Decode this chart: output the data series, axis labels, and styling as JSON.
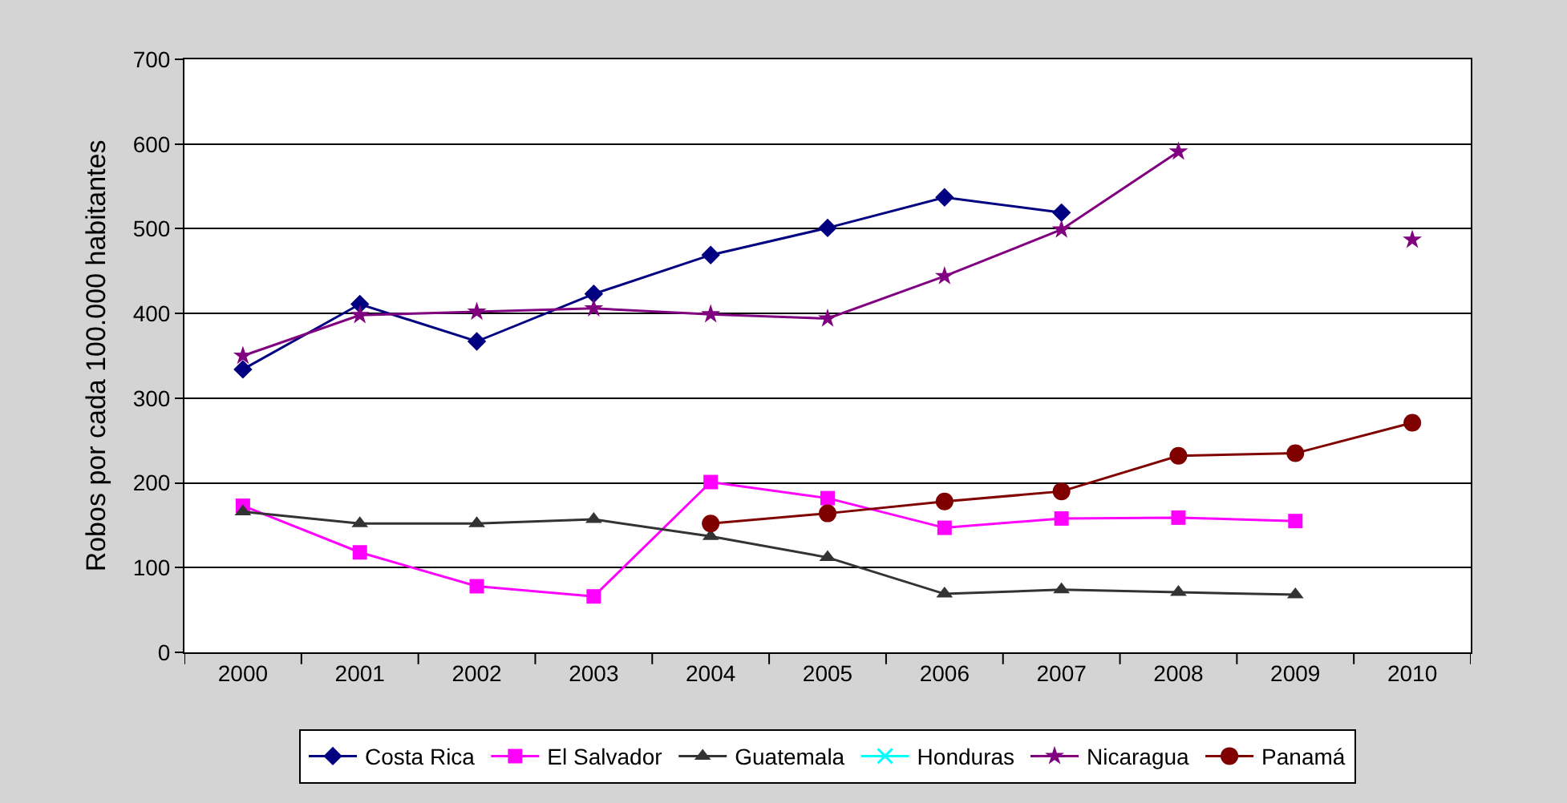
{
  "chart_data": {
    "type": "line",
    "ylabel": "Robos por cada 100.000 habitantes",
    "categories": [
      "2000",
      "2001",
      "2002",
      "2003",
      "2004",
      "2005",
      "2006",
      "2007",
      "2008",
      "2009",
      "2010"
    ],
    "series": [
      {
        "name": "Costa Rica",
        "color": "#000080",
        "marker": "diamond",
        "values": [
          334,
          411,
          367,
          423,
          469,
          501,
          537,
          519,
          null,
          null,
          null
        ]
      },
      {
        "name": "El Salvador",
        "color": "#ff00ff",
        "marker": "square",
        "values": [
          173,
          118,
          78,
          66,
          201,
          182,
          147,
          158,
          159,
          155,
          null
        ]
      },
      {
        "name": "Guatemala",
        "color": "#333333",
        "marker": "triangle",
        "values": [
          166,
          152,
          152,
          157,
          137,
          112,
          69,
          74,
          71,
          68,
          null
        ]
      },
      {
        "name": "Honduras",
        "color": "#00ffff",
        "marker": "cross",
        "values": [
          null,
          null,
          null,
          null,
          null,
          null,
          null,
          null,
          null,
          null,
          null
        ]
      },
      {
        "name": "Nicaragua",
        "color": "#800080",
        "marker": "star",
        "values": [
          350,
          398,
          402,
          406,
          399,
          394,
          444,
          499,
          591,
          null,
          487
        ]
      },
      {
        "name": "Panamá",
        "color": "#800000",
        "marker": "circle",
        "values": [
          null,
          null,
          null,
          null,
          152,
          164,
          178,
          190,
          232,
          235,
          271
        ]
      }
    ],
    "ylim": [
      0,
      700
    ],
    "yticks": [
      0,
      100,
      200,
      300,
      400,
      500,
      600,
      700
    ],
    "grid": "y",
    "legend": "bottom",
    "line_style": "solid"
  }
}
